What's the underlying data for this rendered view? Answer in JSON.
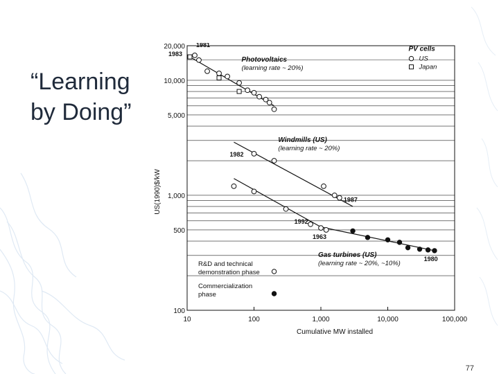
{
  "slide": {
    "title_line1": "“Learning",
    "title_line2": "by Doing”",
    "page_number": "77"
  },
  "colors": {
    "title": "#1f2a3a",
    "background_decoration": "#dfe9f4",
    "chart_ink": "#111111"
  },
  "chart_data": {
    "type": "scatter",
    "xscale": "log",
    "yscale": "log",
    "xlim": [
      10,
      100000
    ],
    "ylim": [
      100,
      20000
    ],
    "grid": true,
    "xlabel": "Cumulative MW installed",
    "ylabel": "US(1990)$/kW",
    "x_ticks": [
      {
        "value": 10,
        "label": "10"
      },
      {
        "value": 100,
        "label": "100"
      },
      {
        "value": 1000,
        "label": "1,000"
      },
      {
        "value": 10000,
        "label": "10,000"
      },
      {
        "value": 100000,
        "label": "100,000"
      }
    ],
    "y_ticks": [
      {
        "value": 20000,
        "label": "20,000"
      },
      {
        "value": 10000,
        "label": "10,000"
      },
      {
        "value": 5000,
        "label": "5,000"
      },
      {
        "value": 1000,
        "label": "1,000"
      },
      {
        "value": 500,
        "label": "500"
      },
      {
        "value": 100,
        "label": "100"
      }
    ],
    "gridlines_y": [
      20000,
      15000,
      10000,
      9000,
      8000,
      7000,
      6000,
      5000,
      4000,
      3000,
      2000,
      1000,
      900,
      800,
      700,
      600,
      500,
      400,
      300,
      200
    ],
    "legend": {
      "title": "PV cells",
      "position": "top-right",
      "entries": [
        {
          "marker": "open-circle",
          "label": "US"
        },
        {
          "marker": "open-square",
          "label": "Japan"
        }
      ]
    },
    "phase_legend": {
      "position": "bottom-left",
      "entries": [
        {
          "marker": "open-circle",
          "label_line1": "R&D and technical",
          "label_line2": "demonstration phase"
        },
        {
          "marker": "filled-circle",
          "label_line1": "Commercialization",
          "label_line2": "phase"
        }
      ]
    },
    "series": [
      {
        "name": "Photovoltaics",
        "subtitle": "(learning rate ~ 20%)",
        "start_label": "1981",
        "start_label_2": "1983",
        "trend": [
          [
            11,
            16000
          ],
          [
            200,
            6000
          ]
        ],
        "points_open_circle": [
          [
            13,
            16500
          ],
          [
            15,
            15000
          ],
          [
            20,
            12000
          ],
          [
            30,
            11500
          ],
          [
            40,
            10800
          ],
          [
            60,
            9500
          ],
          [
            80,
            8200
          ],
          [
            100,
            7800
          ],
          [
            120,
            7200
          ],
          [
            150,
            6800
          ],
          [
            170,
            6400
          ],
          [
            200,
            5600
          ]
        ],
        "points_open_square": [
          [
            11,
            16000
          ],
          [
            30,
            10500
          ],
          [
            60,
            8000
          ]
        ]
      },
      {
        "name": "Windmills (US)",
        "subtitle": "(learning rate ~ 20%)",
        "start_label": "1982",
        "end_label": "1987",
        "trend": [
          [
            50,
            2900
          ],
          [
            3000,
            800
          ]
        ],
        "points_open_circle": [
          [
            100,
            2300
          ],
          [
            200,
            2000
          ],
          [
            1100,
            1200
          ],
          [
            1600,
            1000
          ],
          [
            1900,
            950
          ]
        ],
        "points_filled_circle": []
      },
      {
        "name": "Gas turbines (US)",
        "subtitle": "(learning rate ~ 20%, ~10%)",
        "start_label": "1963",
        "end_label": "1980",
        "kink_label": "1992",
        "trend_rd": [
          [
            50,
            1400
          ],
          [
            1000,
            530
          ]
        ],
        "trend_commercial": [
          [
            1000,
            530
          ],
          [
            50000,
            330
          ]
        ],
        "points_open_circle": [
          [
            50,
            1200
          ],
          [
            100,
            1080
          ],
          [
            300,
            760
          ],
          [
            700,
            560
          ],
          [
            1000,
            520
          ],
          [
            1200,
            500
          ]
        ],
        "points_filled_circle": [
          [
            3000,
            490
          ],
          [
            5000,
            430
          ],
          [
            10000,
            410
          ],
          [
            15000,
            390
          ],
          [
            20000,
            350
          ],
          [
            30000,
            340
          ],
          [
            40000,
            335
          ],
          [
            50000,
            330
          ]
        ]
      }
    ]
  }
}
